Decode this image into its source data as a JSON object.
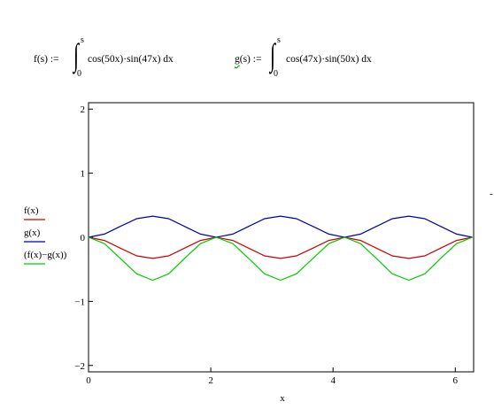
{
  "definitions": {
    "f": {
      "name": "f",
      "arg": "s",
      "lhs": "f(s) :=",
      "upper": "s",
      "lower": "0",
      "integrand": "cos(50x)·sin(47x) dx"
    },
    "g": {
      "name": "g",
      "arg": "s",
      "lhs_suffix": "(s) :=",
      "upper": "s",
      "lower": "0",
      "integrand": "cos(47x)·sin(50x) dx"
    }
  },
  "colors": {
    "f": "#cc0000",
    "g": "#0000aa",
    "diff": "#00cc00",
    "axes": "#000000"
  },
  "chart_data": {
    "type": "line",
    "xlabel": "x",
    "xlim": [
      0,
      6.3
    ],
    "ylim": [
      -2.1,
      2.1
    ],
    "x_ticks": [
      "0",
      "2",
      "4",
      "6"
    ],
    "y_ticks": [
      "2",
      "1",
      "0",
      "−1",
      "−2"
    ],
    "grid": false,
    "legend_placement": "left",
    "series": [
      {
        "name": "f(x)",
        "color": "#cc0000",
        "x": [
          0,
          0.26,
          0.52,
          0.79,
          1.05,
          1.31,
          1.57,
          1.83,
          2.09,
          2.36,
          2.62,
          2.88,
          3.14,
          3.4,
          3.67,
          3.93,
          4.19,
          4.45,
          4.71,
          4.97,
          5.24,
          5.5,
          5.76,
          6.02,
          6.28
        ],
        "values": [
          0,
          -0.05,
          -0.17,
          -0.29,
          -0.33,
          -0.29,
          -0.17,
          -0.05,
          0,
          -0.05,
          -0.17,
          -0.29,
          -0.33,
          -0.29,
          -0.17,
          -0.05,
          0,
          -0.05,
          -0.17,
          -0.29,
          -0.33,
          -0.29,
          -0.17,
          -0.05,
          0
        ]
      },
      {
        "name": "g(x)",
        "color": "#0000aa",
        "x": [
          0,
          0.26,
          0.52,
          0.79,
          1.05,
          1.31,
          1.57,
          1.83,
          2.09,
          2.36,
          2.62,
          2.88,
          3.14,
          3.4,
          3.67,
          3.93,
          4.19,
          4.45,
          4.71,
          4.97,
          5.24,
          5.5,
          5.76,
          6.02,
          6.28
        ],
        "values": [
          0,
          0.05,
          0.17,
          0.29,
          0.33,
          0.29,
          0.17,
          0.05,
          0,
          0.05,
          0.17,
          0.29,
          0.33,
          0.29,
          0.17,
          0.05,
          0,
          0.05,
          0.17,
          0.29,
          0.33,
          0.29,
          0.17,
          0.05,
          0
        ]
      },
      {
        "name": "(f(x)−g(x))",
        "color": "#00cc00",
        "x": [
          0,
          0.26,
          0.52,
          0.79,
          1.05,
          1.31,
          1.57,
          1.83,
          2.09,
          2.36,
          2.62,
          2.88,
          3.14,
          3.4,
          3.67,
          3.93,
          4.19,
          4.45,
          4.71,
          4.97,
          5.24,
          5.5,
          5.76,
          6.02,
          6.28
        ],
        "values": [
          0,
          -0.1,
          -0.33,
          -0.57,
          -0.67,
          -0.57,
          -0.33,
          -0.1,
          0,
          -0.1,
          -0.33,
          -0.57,
          -0.67,
          -0.57,
          -0.33,
          -0.1,
          0,
          -0.1,
          -0.33,
          -0.57,
          -0.67,
          -0.57,
          -0.33,
          -0.1,
          0
        ]
      }
    ]
  }
}
